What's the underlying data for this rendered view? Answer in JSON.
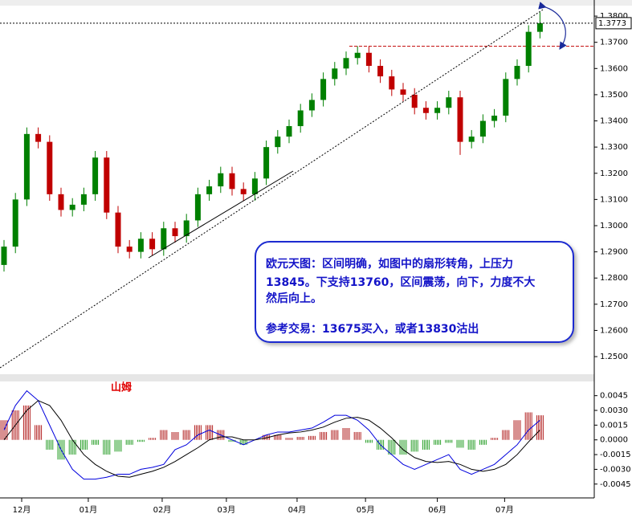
{
  "chart_data": [
    {
      "type": "candlestick",
      "up_color": "#008000",
      "down_color": "#c00000",
      "open": [
        1.285,
        1.292,
        1.31,
        1.335,
        1.332,
        1.312,
        1.306,
        1.308,
        1.312,
        1.326,
        1.305,
        1.292,
        1.29,
        1.295,
        1.291,
        1.299,
        1.296,
        1.302,
        1.312,
        1.315,
        1.32,
        1.314,
        1.312,
        1.318,
        1.33,
        1.334,
        1.338,
        1.344,
        1.348,
        1.356,
        1.36,
        1.364,
        1.366,
        1.361,
        1.357,
        1.352,
        1.35,
        1.345,
        1.343,
        1.345,
        1.349,
        1.332,
        1.334,
        1.34,
        1.342,
        1.356,
        1.361,
        1.374
      ],
      "high": [
        1.2945,
        1.3125,
        1.3375,
        1.3375,
        1.3345,
        1.3145,
        1.3105,
        1.3145,
        1.3285,
        1.3285,
        1.3075,
        1.2945,
        1.2975,
        1.2975,
        1.3015,
        1.3015,
        1.3045,
        1.3145,
        1.3175,
        1.3225,
        1.3225,
        1.3165,
        1.3205,
        1.3325,
        1.3365,
        1.3405,
        1.3465,
        1.3505,
        1.3585,
        1.3625,
        1.3665,
        1.3685,
        1.3685,
        1.3635,
        1.3595,
        1.3545,
        1.3525,
        1.3475,
        1.3475,
        1.3515,
        1.3515,
        1.3365,
        1.3425,
        1.3445,
        1.3585,
        1.3635,
        1.3765,
        1.3815
      ],
      "low": [
        1.2825,
        1.2895,
        1.3075,
        1.3295,
        1.3095,
        1.3035,
        1.3035,
        1.3055,
        1.3095,
        1.3025,
        1.2895,
        1.2875,
        1.2875,
        1.2885,
        1.2885,
        1.2935,
        1.2935,
        1.2995,
        1.3095,
        1.3125,
        1.3115,
        1.3095,
        1.3095,
        1.3155,
        1.3275,
        1.3315,
        1.3355,
        1.3415,
        1.3455,
        1.3535,
        1.3575,
        1.3615,
        1.3585,
        1.3545,
        1.3495,
        1.3475,
        1.3425,
        1.3405,
        1.3405,
        1.3425,
        1.327,
        1.3295,
        1.3315,
        1.3375,
        1.3395,
        1.3535,
        1.3585,
        1.3715
      ],
      "close": [
        1.292,
        1.31,
        1.335,
        1.332,
        1.312,
        1.306,
        1.308,
        1.312,
        1.326,
        1.305,
        1.292,
        1.29,
        1.295,
        1.291,
        1.299,
        1.296,
        1.302,
        1.312,
        1.315,
        1.32,
        1.314,
        1.312,
        1.318,
        1.33,
        1.334,
        1.338,
        1.344,
        1.348,
        1.356,
        1.36,
        1.364,
        1.366,
        1.361,
        1.357,
        1.352,
        1.35,
        1.345,
        1.343,
        1.345,
        1.349,
        1.332,
        1.334,
        1.34,
        1.342,
        1.356,
        1.361,
        1.374,
        1.3773
      ],
      "last_price": 1.3773,
      "level": 1.3685,
      "ylim": [
        1.2445,
        1.3837
      ],
      "yticks": [
        {
          "value": 1.25,
          "label": "1.2500"
        },
        {
          "value": 1.26,
          "label": "1.2600"
        },
        {
          "value": 1.27,
          "label": "1.2700"
        },
        {
          "value": 1.28,
          "label": "1.2800"
        },
        {
          "value": 1.29,
          "label": "1.2900"
        },
        {
          "value": 1.3,
          "label": "1.3000"
        },
        {
          "value": 1.31,
          "label": "1.3100"
        },
        {
          "value": 1.32,
          "label": "1.3200"
        },
        {
          "value": 1.33,
          "label": "1.3300"
        },
        {
          "value": 1.34,
          "label": "1.3400"
        },
        {
          "value": 1.35,
          "label": "1.3500"
        },
        {
          "value": 1.36,
          "label": "1.3600"
        },
        {
          "value": 1.37,
          "label": "1.3700"
        },
        {
          "value": 1.38,
          "label": "1.3800"
        }
      ],
      "xticks": [
        {
          "value": 1.55,
          "label": "12月"
        },
        {
          "value": 7.39,
          "label": "01月"
        },
        {
          "value": 13.87,
          "label": "02月"
        },
        {
          "value": 19.5,
          "label": "03月"
        },
        {
          "value": 25.7,
          "label": "04月"
        },
        {
          "value": 31.7,
          "label": "05月"
        },
        {
          "value": 38.0,
          "label": "06月"
        },
        {
          "value": 43.9,
          "label": "07月"
        }
      ],
      "annotation": {
        "lines": [
          "欧元天图：区间明确，如图中的扇形转角，上压力",
          "13845。下支持13760，区间震荡，向下，力度不大",
          "然后向上。"
        ],
        "trade": "参考交易：13675买入，或者13830沽出"
      }
    },
    {
      "type": "macd",
      "label": "山姆",
      "histogram": {
        "up_color": "#b22222",
        "down_color": "#2ca02c",
        "values": [
          0.002,
          0.003,
          0.0035,
          0.0015,
          -0.001,
          -0.002,
          -0.0015,
          -0.001,
          -0.0005,
          -0.0015,
          -0.0012,
          -0.0005,
          -0.0002,
          0.0002,
          0.001,
          0.0008,
          0.001,
          0.0015,
          0.0015,
          0.001,
          -0.0002,
          -0.0005,
          0.0,
          0.0005,
          0.0005,
          0.0002,
          0.0003,
          0.0004,
          0.0008,
          0.001,
          0.0012,
          0.0008,
          -0.0003,
          -0.001,
          -0.0015,
          -0.0015,
          -0.0012,
          -0.001,
          -0.0005,
          -0.0003,
          -0.0008,
          -0.001,
          -0.0005,
          0.0002,
          0.001,
          0.002,
          0.0028,
          0.0025
        ]
      },
      "series": [
        {
          "color": "#0000dd",
          "values": [
            0.001,
            0.0035,
            0.005,
            0.004,
            0.0015,
            -0.001,
            -0.003,
            -0.004,
            -0.004,
            -0.0038,
            -0.0035,
            -0.0035,
            -0.003,
            -0.0028,
            -0.0025,
            -0.001,
            -0.0005,
            0.0005,
            0.001,
            0.0005,
            0.0,
            -0.0005,
            0.0,
            0.0005,
            0.0008,
            0.0008,
            0.001,
            0.0012,
            0.0018,
            0.0025,
            0.0025,
            0.002,
            0.001,
            -0.0005,
            -0.0015,
            -0.0025,
            -0.003,
            -0.0025,
            -0.002,
            -0.0015,
            -0.003,
            -0.0035,
            -0.003,
            -0.0025,
            -0.0015,
            -0.0005,
            0.001,
            0.002
          ]
        },
        {
          "color": "#000000",
          "values": [
            0.0,
            0.0015,
            0.003,
            0.004,
            0.0035,
            0.002,
            0.0,
            -0.0015,
            -0.0025,
            -0.0032,
            -0.0037,
            -0.0038,
            -0.0035,
            -0.0032,
            -0.0028,
            -0.0022,
            -0.0015,
            -0.0008,
            0.0,
            0.0003,
            0.0003,
            0.0,
            0.0,
            0.0002,
            0.0005,
            0.0007,
            0.0008,
            0.001,
            0.0013,
            0.0018,
            0.0022,
            0.0023,
            0.002,
            0.0012,
            0.0002,
            -0.001,
            -0.0018,
            -0.0022,
            -0.0023,
            -0.0022,
            -0.0025,
            -0.003,
            -0.0032,
            -0.003,
            -0.0025,
            -0.0015,
            -0.0002,
            0.001
          ]
        }
      ],
      "ylim": [
        -0.0055,
        0.0057
      ],
      "yticks": [
        {
          "value": 0.0045,
          "label": "0.0045"
        },
        {
          "value": 0.003,
          "label": "0.0030"
        },
        {
          "value": 0.0015,
          "label": "0.0015"
        },
        {
          "value": 0,
          "label": "0.0000"
        },
        {
          "value": -0.0015,
          "label": "-0.0015"
        },
        {
          "value": -0.003,
          "label": "-0.0030"
        },
        {
          "value": -0.0045,
          "label": "-0.0045"
        }
      ]
    }
  ]
}
